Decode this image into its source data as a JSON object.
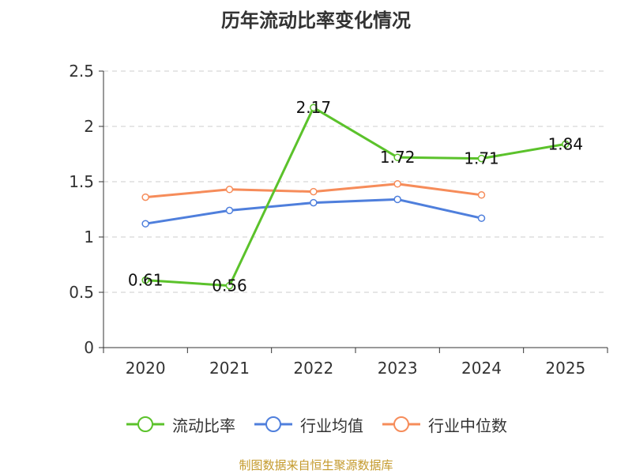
{
  "chart_data": {
    "type": "line",
    "title": "历年流动比率变化情况",
    "categories": [
      "2020",
      "2021",
      "2022",
      "2023",
      "2024",
      "2025"
    ],
    "ylim": [
      0,
      2.5
    ],
    "yticks": [
      "0",
      "0.5",
      "1",
      "1.5",
      "2",
      "2.5"
    ],
    "grid": true,
    "legend_position": "bottom",
    "series": [
      {
        "name": "流动比率",
        "color": "#5bc22b",
        "values": [
          0.61,
          0.56,
          2.17,
          1.72,
          1.71,
          1.84
        ],
        "labels": [
          "0.61",
          "0.56",
          "2.17",
          "1.72",
          "1.71",
          "1.84"
        ]
      },
      {
        "name": "行业均值",
        "color": "#4f7fdc",
        "values": [
          1.12,
          1.24,
          1.31,
          1.34,
          1.17,
          null
        ]
      },
      {
        "name": "行业中位数",
        "color": "#f68c5a",
        "values": [
          1.36,
          1.43,
          1.41,
          1.48,
          1.38,
          null
        ]
      }
    ]
  },
  "source_note": "制图数据来自恒生聚源数据库"
}
